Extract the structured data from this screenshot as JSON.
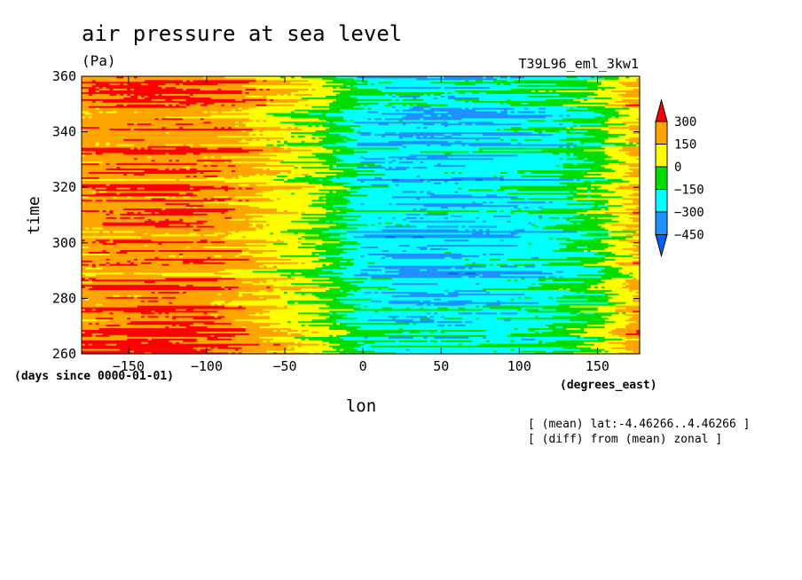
{
  "chart_data": {
    "type": "heatmap",
    "title": "air pressure at sea level",
    "subtitle": "(Pa)",
    "experiment": "T39L96_eml_3kw1",
    "xlabel": "lon",
    "ylabel": "time",
    "x_units": "(degrees_east)",
    "y_units": "(days since 0000-01-01)",
    "xlim": [
      -180,
      177
    ],
    "ylim": [
      260,
      360
    ],
    "x_ticks": [
      -150,
      -100,
      -50,
      0,
      50,
      100,
      150
    ],
    "y_ticks": [
      260,
      280,
      300,
      320,
      340,
      360
    ],
    "annotations": [
      "[ (mean) lat:-4.46266..4.46266 ]",
      "[ (diff) from (mean) zonal ]"
    ],
    "colorbar": {
      "levels": [
        300,
        150,
        0,
        -150,
        -300,
        -450
      ],
      "colors": [
        "#ff0000",
        "#ffa500",
        "#ffff00",
        "#00dd00",
        "#00ffff",
        "#1e90ff",
        "#0060ff"
      ]
    },
    "field_description": {
      "x_samples": [
        -180,
        -150,
        -120,
        -90,
        -60,
        -30,
        0,
        30,
        60,
        90,
        120,
        150,
        177
      ],
      "mean_profile": [
        220,
        260,
        270,
        230,
        120,
        0,
        -230,
        -280,
        -280,
        -250,
        -200,
        -80,
        180
      ]
    }
  }
}
